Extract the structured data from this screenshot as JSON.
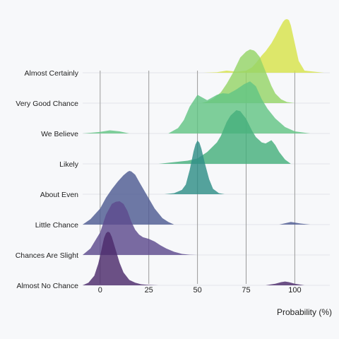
{
  "chart_data": {
    "type": "ridgeline",
    "title": "",
    "xlabel": "Probability (%)",
    "ylabel": "",
    "xlim": [
      -9,
      118
    ],
    "xticks": [
      0,
      25,
      50,
      75,
      100
    ],
    "grid": "vertical at x ticks",
    "legend": "none",
    "color_scale": "viridis",
    "categories": [
      "Almost Certainly",
      "Very Good Chance",
      "We Believe",
      "Likely",
      "About Even",
      "Little Chance",
      "Chances Are Slight",
      "Almost No Chance"
    ],
    "series": [
      {
        "category": "Almost Certainly",
        "color": "#d7e34a",
        "x": [
          53,
          60,
          65,
          70,
          75,
          78,
          80,
          83,
          85,
          88,
          90,
          92,
          94,
          95,
          96,
          97,
          98,
          100,
          102,
          105,
          115
        ],
        "density": [
          0,
          0.01,
          0.04,
          0.02,
          0.04,
          0.1,
          0.18,
          0.32,
          0.4,
          0.55,
          0.68,
          0.82,
          0.95,
          0.99,
          1.0,
          0.98,
          0.88,
          0.55,
          0.22,
          0.04,
          0
        ]
      },
      {
        "category": "Very Good Chance",
        "color": "#95d468",
        "x": [
          52,
          55,
          58,
          62,
          65,
          68,
          70,
          72,
          75,
          77,
          79,
          80,
          82,
          84,
          86,
          88,
          90,
          93,
          96,
          100
        ],
        "density": [
          0,
          0.03,
          0.08,
          0.2,
          0.36,
          0.55,
          0.7,
          0.85,
          0.96,
          1.0,
          0.98,
          0.95,
          0.86,
          0.68,
          0.5,
          0.32,
          0.18,
          0.07,
          0.02,
          0
        ]
      },
      {
        "category": "We Believe",
        "color": "#63c485",
        "x": [
          -9,
          0,
          5,
          10,
          15,
          35,
          40,
          43,
          46,
          50,
          55,
          60,
          63,
          66,
          70,
          74,
          77,
          80,
          83,
          86,
          90,
          95,
          100,
          108
        ],
        "density": [
          0,
          0.03,
          0.06,
          0.04,
          0,
          0,
          0.1,
          0.25,
          0.5,
          0.72,
          0.62,
          0.72,
          0.75,
          0.74,
          0.82,
          0.92,
          0.97,
          0.88,
          0.64,
          0.46,
          0.28,
          0.12,
          0.04,
          0
        ]
      },
      {
        "category": "Likely",
        "color": "#45b07d",
        "x": [
          30,
          35,
          40,
          45,
          50,
          55,
          60,
          62,
          65,
          67,
          70,
          72,
          75,
          78,
          80,
          83,
          85,
          88,
          90,
          92,
          95,
          98
        ],
        "density": [
          0,
          0.02,
          0.04,
          0.06,
          0.1,
          0.22,
          0.4,
          0.52,
          0.78,
          0.9,
          1.0,
          0.98,
          0.84,
          0.62,
          0.5,
          0.4,
          0.38,
          0.44,
          0.35,
          0.22,
          0.08,
          0
        ]
      },
      {
        "category": "About Even",
        "color": "#2f8f88",
        "x": [
          33,
          38,
          42,
          44,
          46,
          48,
          49,
          50,
          51,
          52,
          54,
          56,
          58,
          61,
          64
        ],
        "density": [
          0,
          0.02,
          0.08,
          0.18,
          0.45,
          0.8,
          0.93,
          1.0,
          0.96,
          0.85,
          0.55,
          0.28,
          0.1,
          0.02,
          0
        ]
      },
      {
        "category": "Little Chance",
        "color": "#4e5b93",
        "x": [
          -9,
          -5,
          0,
          3,
          6,
          9,
          12,
          14,
          15,
          16,
          18,
          20,
          24,
          28,
          32,
          35,
          38,
          60,
          92,
          98,
          103,
          108
        ],
        "density": [
          0,
          0.1,
          0.3,
          0.5,
          0.66,
          0.8,
          0.92,
          0.98,
          1.0,
          0.99,
          0.93,
          0.8,
          0.55,
          0.3,
          0.12,
          0.05,
          0,
          0,
          0,
          0.05,
          0.02,
          0
        ]
      },
      {
        "category": "Chances Are Slight",
        "color": "#5d4a8e",
        "x": [
          -9,
          -5,
          0,
          3,
          6,
          8,
          10,
          12,
          14,
          16,
          18,
          20,
          22,
          25,
          28,
          31,
          34,
          38,
          42,
          46,
          50
        ],
        "density": [
          0,
          0.12,
          0.42,
          0.75,
          0.95,
          0.99,
          1.0,
          0.95,
          0.82,
          0.62,
          0.47,
          0.38,
          0.33,
          0.3,
          0.25,
          0.18,
          0.12,
          0.06,
          0.02,
          0.005,
          0
        ]
      },
      {
        "category": "Almost No Chance",
        "color": "#4c2b6b",
        "x": [
          -9,
          -6,
          -3,
          -1,
          0,
          1,
          2,
          3,
          4,
          5,
          6,
          8,
          10,
          12,
          15,
          18,
          21,
          24,
          27,
          30,
          85,
          90,
          93,
          95,
          97,
          100,
          105
        ],
        "density": [
          0,
          0.05,
          0.18,
          0.4,
          0.55,
          0.72,
          0.88,
          0.97,
          1.0,
          0.98,
          0.9,
          0.66,
          0.42,
          0.24,
          0.1,
          0.05,
          0.02,
          0.01,
          0.005,
          0,
          0,
          0.03,
          0.06,
          0.07,
          0.06,
          0.03,
          0
        ]
      }
    ]
  }
}
